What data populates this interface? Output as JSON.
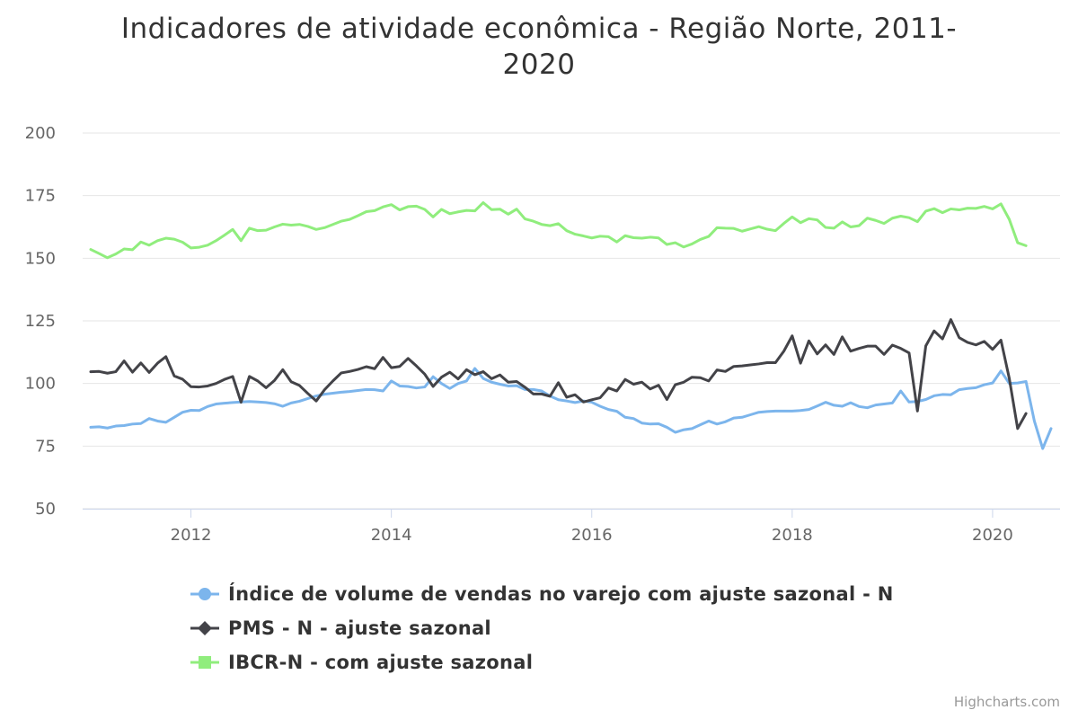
{
  "title_line1": "Indicadores de atividade econômica - Região Norte, 2011-",
  "title_line2": "2020",
  "credits": "Highcharts.com",
  "chart_data": {
    "type": "line",
    "title": "Indicadores de atividade econômica - Região Norte, 2011-2020",
    "xlabel": "",
    "ylabel": "",
    "x_start": "2011-01",
    "x_end": "2020-05",
    "x_tick_labels": [
      "2012",
      "2014",
      "2016",
      "2018",
      "2020"
    ],
    "y_ticks": [
      50,
      75,
      100,
      125,
      150,
      175,
      200
    ],
    "ylim": [
      50,
      200
    ],
    "grid": true,
    "legend_position": "bottom",
    "series": [
      {
        "name": "Índice de volume de vendas no varejo com ajuste sazonal - N",
        "color": "#7cb5ec",
        "marker": "circle",
        "values": [
          82.5,
          82.7,
          82.2,
          83,
          83.2,
          83.8,
          84,
          86,
          85,
          84.5,
          86.5,
          88.5,
          89.3,
          89.2,
          90.8,
          91.8,
          92.1,
          92.4,
          92.6,
          92.8,
          92.6,
          92.4,
          91.9,
          90.9,
          92.2,
          92.9,
          94,
          95,
          95.7,
          96.1,
          96.5,
          96.8,
          97.2,
          97.6,
          97.5,
          97,
          101,
          99,
          98.8,
          98.2,
          98.6,
          102.7,
          100,
          98,
          100,
          101,
          106,
          102,
          100.5,
          99.7,
          99,
          99.1,
          97.6,
          97.6,
          97,
          95,
          93.5,
          93,
          92.4,
          93,
          92.5,
          90.9,
          89.6,
          88.9,
          86.5,
          86,
          84.2,
          83.8,
          83.9,
          82.5,
          80.5,
          81.5,
          82,
          83.5,
          85,
          83.8,
          84.7,
          86.2,
          86.5,
          87.5,
          88.5,
          88.8,
          89,
          89,
          89,
          89.2,
          89.6,
          91,
          92.5,
          91.3,
          90.9,
          92.3,
          90.8,
          90.3,
          91.4,
          91.8,
          92.2,
          97,
          92.6,
          92.8,
          93.6,
          95.1,
          95.6,
          95.5,
          97.5,
          98,
          98.3,
          99.5,
          100.2,
          105,
          100,
          100.2,
          100.8,
          85,
          74,
          82
        ]
      },
      {
        "name": "PMS - N - ajuste sazonal",
        "color": "#434348",
        "marker": "diamond",
        "values": [
          104.7,
          104.8,
          104.1,
          104.7,
          109,
          104.5,
          108.2,
          104.4,
          108.1,
          110.7,
          103,
          101.7,
          98.7,
          98.6,
          99,
          100,
          101.6,
          102.8,
          92.5,
          102.8,
          101,
          98.3,
          101.2,
          105.5,
          100.7,
          99.2,
          96,
          93,
          97.5,
          101,
          104.2,
          104.8,
          105.6,
          106.7,
          105.9,
          110.4,
          106.3,
          106.8,
          110,
          107,
          103.7,
          98.8,
          102.5,
          104.5,
          101.8,
          105.5,
          103.5,
          104.7,
          101.9,
          103.4,
          100.5,
          100.8,
          98.5,
          95.8,
          95.8,
          94.9,
          100.3,
          94.5,
          95.5,
          92.6,
          93.5,
          94.3,
          98.2,
          97,
          101.6,
          99.7,
          100.5,
          97.8,
          99.3,
          93.6,
          99.5,
          100.5,
          102.5,
          102.3,
          101,
          105.4,
          104.8,
          106.8,
          107,
          107.4,
          107.8,
          108.3,
          108.3,
          112.9,
          119,
          108.1,
          117,
          111.8,
          115.4,
          111.6,
          118.6,
          112.9,
          114,
          114.9,
          114.9,
          111.6,
          115.3,
          114,
          112.2,
          89,
          115,
          121,
          117.8,
          125.5,
          118.3,
          116.4,
          115.4,
          116.8,
          113.6,
          117.3,
          102,
          82,
          88
        ]
      },
      {
        "name": "IBCR-N - com ajuste sazonal",
        "color": "#90ed7d",
        "marker": "square",
        "values": [
          153.5,
          151.9,
          150.2,
          151.7,
          153.7,
          153.4,
          156.5,
          155.2,
          157,
          158,
          157.6,
          156.4,
          154.1,
          154.4,
          155.2,
          157,
          159.2,
          161.5,
          157,
          162,
          161,
          161.2,
          162.5,
          163.6,
          163.2,
          163.5,
          162.7,
          161.5,
          162.2,
          163.5,
          164.8,
          165.5,
          167,
          168.6,
          169,
          170.5,
          171.4,
          169.3,
          170.6,
          170.8,
          169.5,
          166.5,
          169.5,
          167.8,
          168.5,
          169.1,
          168.9,
          172.2,
          169.4,
          169.6,
          167.6,
          169.6,
          165.7,
          164.8,
          163.5,
          163,
          163.8,
          161,
          159.6,
          158.9,
          158.1,
          158.8,
          158.6,
          156.5,
          159,
          158.2,
          158,
          158.4,
          158.1,
          155.5,
          156.2,
          154.5,
          155.7,
          157.5,
          158.7,
          162.2,
          162,
          161.9,
          160.8,
          161.7,
          162.6,
          161.6,
          161,
          163.9,
          166.5,
          164.2,
          165.8,
          165.3,
          162.3,
          162,
          164.5,
          162.5,
          163,
          166,
          165.1,
          163.9,
          166,
          166.8,
          166.2,
          164.6,
          168.8,
          169.8,
          168.2,
          169.7,
          169.3,
          170,
          169.9,
          170.7,
          169.7,
          171.7,
          165.5,
          156.2,
          155
        ]
      }
    ]
  }
}
